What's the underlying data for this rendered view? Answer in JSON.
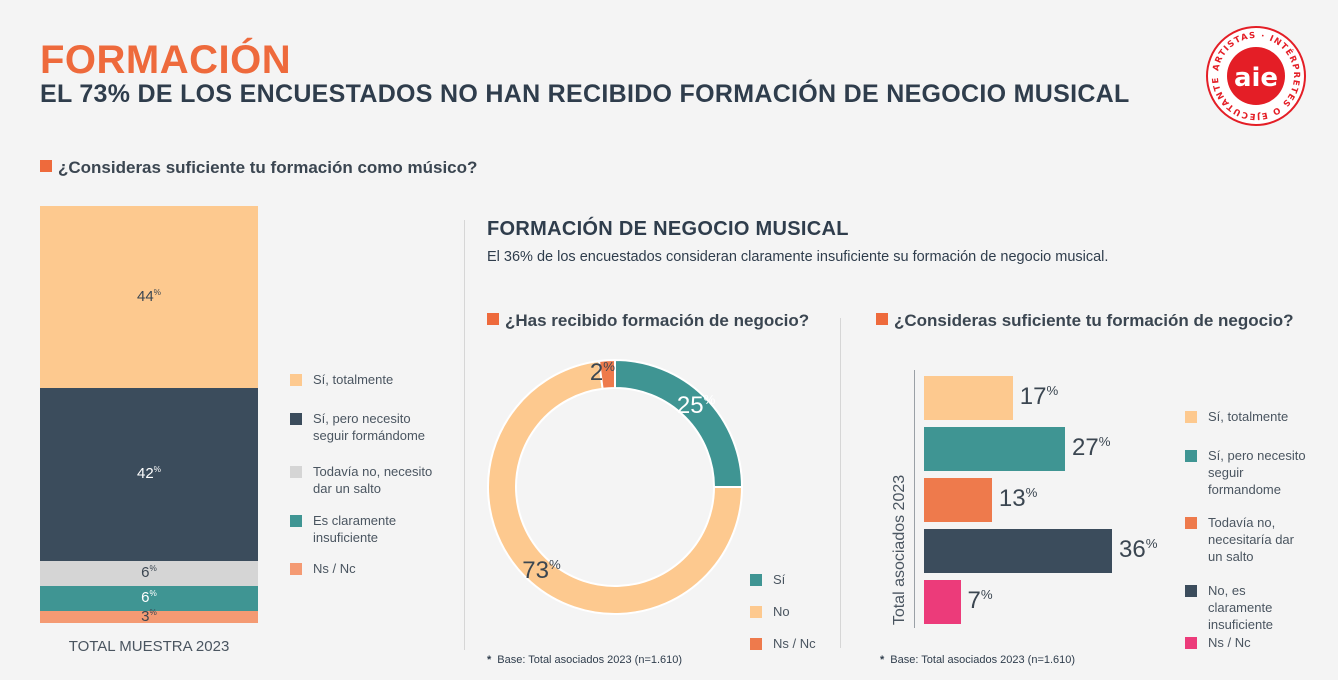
{
  "header": {
    "title": "FORMACIÓN",
    "subtitle": "EL 73% DE LOS ENCUESTADOS NO HAN RECIBIDO FORMACIÓN DE NEGOCIO MUSICAL",
    "logo_text": "aie",
    "logo_ring_text": "ARTISTAS · INTÉRPRETES O EJECUTANTES ·",
    "logo_color": "#e41e26"
  },
  "colors": {
    "accent": "#ee6a3c",
    "peach": "#fdc98f",
    "navy": "#3b4c5c",
    "lightgray": "#d5d5d5",
    "teal": "#3f9593",
    "salmon": "#f49a73",
    "orange": "#ee7a4c",
    "pink": "#ec3b7a"
  },
  "left_chart": {
    "question": "¿Consideras suficiente tu formación como músico?",
    "footer": "TOTAL MUESTRA 2023"
  },
  "middle": {
    "section_title": "FORMACIÓN DE NEGOCIO MUSICAL",
    "description": "El 36% de los encuestados consideran claramente insuficiente su formación de negocio musical.",
    "question": "¿Has recibido formación de negocio?",
    "base_note": "Base: Total asociados 2023 (n=1.610)"
  },
  "right_chart": {
    "question": "¿Consideras suficiente tu formación de negocio?",
    "axis_label": "Total asociados 2023",
    "base_note": "Base: Total asociados 2023 (n=1.610)"
  },
  "chart_data": [
    {
      "type": "bar",
      "stacked": true,
      "question": "¿Consideras suficiente tu formación como músico?",
      "categories": [
        "TOTAL MUESTRA 2023"
      ],
      "unit": "%",
      "series": [
        {
          "name": "Sí, totalmente",
          "value": 44,
          "color": "#fdc98f"
        },
        {
          "name": "Sí, pero necesito seguir formándome",
          "value": 42,
          "color": "#3b4c5c"
        },
        {
          "name": "Todavía no, necesito dar un salto",
          "value": 6,
          "color": "#d5d5d5"
        },
        {
          "name": "Es claramente insuficiente",
          "value": 6,
          "color": "#3f9593"
        },
        {
          "name": "Ns / Nc",
          "value": 3,
          "color": "#f49a73"
        }
      ],
      "legend": "right"
    },
    {
      "type": "pie",
      "donut": true,
      "question": "¿Has recibido formación de negocio?",
      "unit": "%",
      "slices": [
        {
          "label": "Sí",
          "value": 25,
          "color": "#3f9593"
        },
        {
          "label": "No",
          "value": 73,
          "color": "#fdc98f"
        },
        {
          "label": "Ns / Nc",
          "value": 2,
          "color": "#ee7a4c"
        }
      ],
      "legend": "bottom-right"
    },
    {
      "type": "bar",
      "orientation": "horizontal",
      "question": "¿Consideras suficiente tu formación de negocio?",
      "ylabel": "Total asociados 2023",
      "unit": "%",
      "bars": [
        {
          "label": "Sí, totalmente",
          "value": 17,
          "color": "#fdc98f"
        },
        {
          "label": "Sí, pero necesito seguir formandome",
          "value": 27,
          "color": "#3f9593"
        },
        {
          "label": "Todavía no, necesitaría dar un salto",
          "value": 13,
          "color": "#ee7a4c"
        },
        {
          "label": "No, es claramente insuficiente",
          "value": 36,
          "color": "#3b4c5c"
        },
        {
          "label": "Ns / Nc",
          "value": 7,
          "color": "#ec3b7a"
        }
      ],
      "legend": "right"
    }
  ]
}
